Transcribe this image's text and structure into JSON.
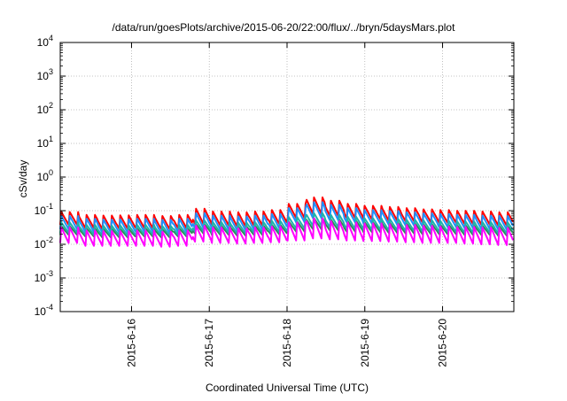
{
  "chart_data": {
    "type": "line",
    "title": "/data/run/goesPlots/archive/2015-06-20/22:00/flux/../bryn/5daysMars.plot",
    "xlabel": "Coordinated Universal Time (UTC)",
    "ylabel": "cSv/day",
    "yscale": "log",
    "ylim": [
      0.0001,
      10000
    ],
    "xlim": [
      "2015-06-15T02:00",
      "2015-06-20T22:00"
    ],
    "grid": true,
    "legend": "none",
    "y_ticks": [
      {
        "base": "10",
        "exp": "4"
      },
      {
        "base": "10",
        "exp": "3"
      },
      {
        "base": "10",
        "exp": "2"
      },
      {
        "base": "10",
        "exp": "1"
      },
      {
        "base": "10",
        "exp": "0"
      },
      {
        "base": "10",
        "exp": "-1"
      },
      {
        "base": "10",
        "exp": "-2"
      },
      {
        "base": "10",
        "exp": "-3"
      },
      {
        "base": "10",
        "exp": "-4"
      }
    ],
    "x_ticks": [
      "2015-6-16",
      "2015-6-17",
      "2015-6-18",
      "2015-6-19",
      "2015-6-20"
    ],
    "orbit_period_hours": 2.6,
    "series": [
      {
        "color": "#ff0000",
        "peaks": [
          0.092,
          0.075,
          0.072,
          0.073,
          0.075,
          0.07,
          0.075,
          0.115,
          0.095,
          0.09,
          0.095,
          0.105,
          0.16,
          0.25,
          0.2,
          0.16,
          0.14,
          0.13,
          0.12,
          0.11,
          0.105,
          0.1,
          0.095,
          0.09
        ],
        "troughs": [
          0.038,
          0.03,
          0.028,
          0.029,
          0.03,
          0.028,
          0.03,
          0.04,
          0.036,
          0.034,
          0.036,
          0.04,
          0.06,
          0.08,
          0.07,
          0.06,
          0.055,
          0.05,
          0.048,
          0.045,
          0.043,
          0.04,
          0.038,
          0.036
        ]
      },
      {
        "color": "#1e90ff",
        "peaks": [
          0.07,
          0.058,
          0.055,
          0.056,
          0.058,
          0.054,
          0.058,
          0.085,
          0.072,
          0.068,
          0.072,
          0.08,
          0.12,
          0.18,
          0.15,
          0.12,
          0.105,
          0.098,
          0.09,
          0.084,
          0.08,
          0.076,
          0.072,
          0.07
        ],
        "troughs": [
          0.028,
          0.023,
          0.022,
          0.022,
          0.023,
          0.021,
          0.023,
          0.03,
          0.027,
          0.026,
          0.027,
          0.03,
          0.045,
          0.06,
          0.052,
          0.045,
          0.041,
          0.038,
          0.036,
          0.034,
          0.032,
          0.03,
          0.028,
          0.027
        ]
      },
      {
        "color": "#2e8b57",
        "peaks": [
          0.035,
          0.03,
          0.029,
          0.029,
          0.03,
          0.028,
          0.03,
          0.04,
          0.036,
          0.034,
          0.036,
          0.038,
          0.048,
          0.06,
          0.055,
          0.05,
          0.046,
          0.044,
          0.042,
          0.04,
          0.038,
          0.037,
          0.036,
          0.035
        ],
        "troughs": [
          0.019,
          0.017,
          0.016,
          0.016,
          0.017,
          0.016,
          0.017,
          0.021,
          0.019,
          0.018,
          0.019,
          0.02,
          0.024,
          0.028,
          0.026,
          0.024,
          0.023,
          0.022,
          0.021,
          0.02,
          0.02,
          0.019,
          0.019,
          0.018
        ]
      },
      {
        "color": "#20b2aa",
        "peaks": [
          0.045,
          0.038,
          0.036,
          0.037,
          0.038,
          0.035,
          0.038,
          0.052,
          0.046,
          0.044,
          0.046,
          0.05,
          0.065,
          0.085,
          0.075,
          0.066,
          0.06,
          0.057,
          0.054,
          0.052,
          0.05,
          0.048,
          0.046,
          0.045
        ],
        "troughs": [
          0.022,
          0.019,
          0.018,
          0.018,
          0.019,
          0.018,
          0.019,
          0.024,
          0.022,
          0.021,
          0.022,
          0.023,
          0.029,
          0.035,
          0.032,
          0.029,
          0.027,
          0.026,
          0.025,
          0.024,
          0.023,
          0.022,
          0.022,
          0.021
        ]
      },
      {
        "color": "#ff00ff",
        "peaks": [
          0.032,
          0.026,
          0.025,
          0.025,
          0.026,
          0.024,
          0.026,
          0.036,
          0.032,
          0.03,
          0.032,
          0.034,
          0.045,
          0.06,
          0.05,
          0.045,
          0.042,
          0.04,
          0.038,
          0.036,
          0.034,
          0.033,
          0.032,
          0.031
        ],
        "troughs": [
          0.011,
          0.009,
          0.009,
          0.009,
          0.009,
          0.0085,
          0.009,
          0.012,
          0.011,
          0.0105,
          0.011,
          0.0115,
          0.013,
          0.015,
          0.014,
          0.013,
          0.0125,
          0.012,
          0.0115,
          0.011,
          0.011,
          0.0105,
          0.01,
          0.0095
        ]
      }
    ]
  }
}
